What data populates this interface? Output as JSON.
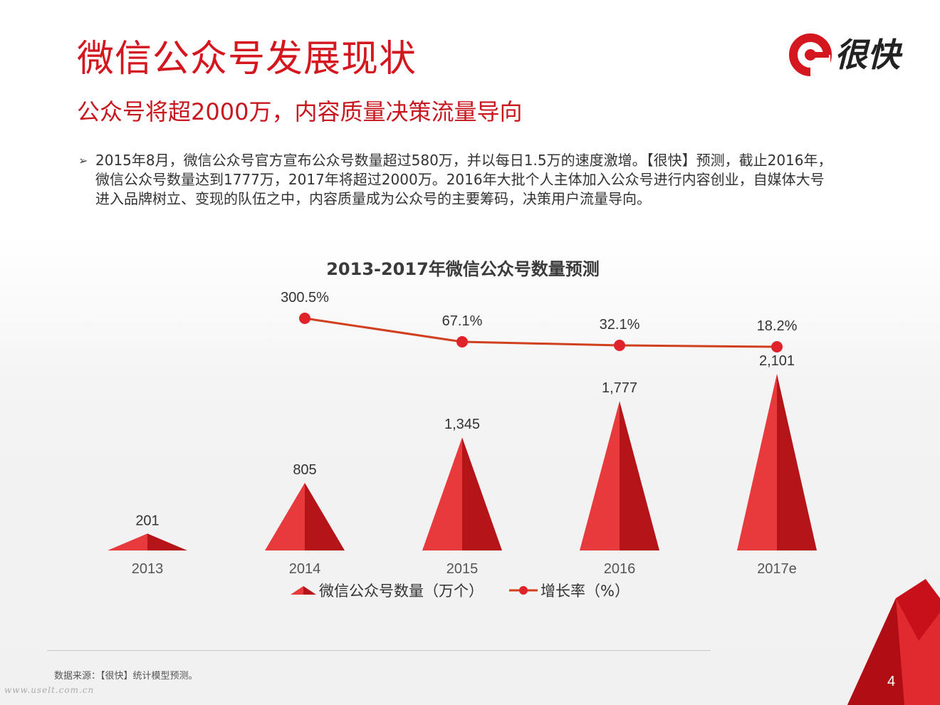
{
  "slide": {
    "title": "微信公众号发展现状",
    "subtitle": "公众号将超2000万，内容质量决策流量导向",
    "page_number": "4",
    "source": "数据来源：【很快】统计模型预测。",
    "watermark": "www.uselt.com.cn",
    "bullet_marker": "➢",
    "bullet_lines": [
      "2015年8月，微信公众号官方宣布公众号数量超过580万，并以每日1.5万的速度激增。【很快】预测，截止2016年，",
      "微信公众号数量达到1777万，2017年将超过2000万。2016年大批个人主体加入公众号进行内容创业，自媒体大号",
      "进入品牌树立、变现的队伍之中，内容质量成为公众号的主要筹码，决策用户流量导向。"
    ]
  },
  "logo": {
    "text": "很快",
    "icon": "logo-ring-icon",
    "color": "#d4161e"
  },
  "colors": {
    "accent": "#d4161e",
    "bar_light": "#e8393d",
    "bar_dark": "#b51419",
    "line": "#d0401f",
    "marker": "#e0232b"
  },
  "chart_data": {
    "type": "bar+line",
    "title": "2013-2017年微信公众号数量预测",
    "categories": [
      "2013",
      "2014",
      "2015",
      "2016",
      "2017e"
    ],
    "series": [
      {
        "name": "微信公众号数量（万个）",
        "kind": "triangle-bar",
        "values": [
          201,
          805,
          1345,
          1777,
          2101
        ],
        "labels": [
          "201",
          "805",
          "1,345",
          "1,777",
          "2,101"
        ]
      },
      {
        "name": "增长率（%）",
        "kind": "line",
        "values": [
          null,
          300.5,
          67.1,
          32.1,
          18.2
        ],
        "labels": [
          "",
          "300.5%",
          "67.1%",
          "32.1%",
          "18.2%"
        ]
      }
    ],
    "legend_position": "bottom",
    "grid": false
  }
}
